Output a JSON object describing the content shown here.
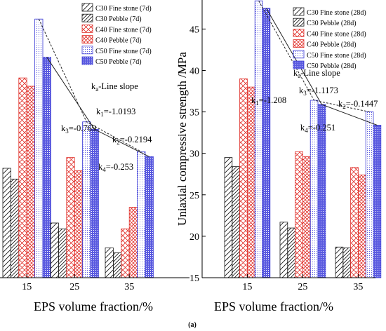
{
  "caption": "(a)",
  "chart_data": [
    {
      "type": "bar",
      "categories": [
        "15",
        "25",
        "35"
      ],
      "xlabel": "EPS volume fraction/%",
      "ylabel": "",
      "ylim": [
        15,
        48.5
      ],
      "series": [
        {
          "name": "C30 Fine stone (7d)",
          "values": [
            28.2,
            21.6,
            18.6
          ]
        },
        {
          "name": "C30 Pebble (7d)",
          "values": [
            26.9,
            20.9,
            18.0
          ]
        },
        {
          "name": "C40 Fine stone (7d)",
          "values": [
            39.1,
            29.5,
            20.9
          ]
        },
        {
          "name": "C40 Pebble (7d)",
          "values": [
            38.1,
            27.9,
            23.5
          ]
        },
        {
          "name": "C50 Fine stone (7d)",
          "values": [
            46.2,
            33.8,
            30.2
          ]
        },
        {
          "name": "C50 Pebble (7d)",
          "values": [
            41.6,
            32.9,
            29.6
          ]
        }
      ],
      "annotations": [
        {
          "text": "k1=-1.0193",
          "sub": "1",
          "prefix": "k",
          "value": "=-1.0193"
        },
        {
          "text": "k3=-0.769",
          "sub": "3",
          "prefix": "k",
          "value": "=-0.769"
        },
        {
          "text": "k2=-0.2194",
          "sub": "2",
          "prefix": "k",
          "value": "=-0.2194"
        },
        {
          "text": "k4=-0.253",
          "sub": "4",
          "prefix": "k",
          "value": "=-0.253"
        },
        {
          "text": "ka-Line slope",
          "sub": "a",
          "prefix": "k",
          "value": "-Line slope"
        }
      ]
    },
    {
      "type": "bar",
      "categories": [
        "15",
        "25",
        "35"
      ],
      "xlabel": "EPS volume fraction/%",
      "ylabel": "Uniaxial compressive strength /MPa",
      "ylim": [
        15,
        48.5
      ],
      "yticks": [
        15,
        20,
        25,
        30,
        35,
        40,
        45
      ],
      "series": [
        {
          "name": "C30 Fine stone (28d)",
          "values": [
            29.5,
            21.7,
            18.7
          ]
        },
        {
          "name": "C30 Pebble (28d)",
          "values": [
            28.4,
            21.0,
            18.6
          ]
        },
        {
          "name": "C40 Fine stone (28d)",
          "values": [
            39.0,
            30.2,
            28.3
          ]
        },
        {
          "name": "C40 Pebble (28d)",
          "values": [
            38.0,
            29.6,
            27.4
          ]
        },
        {
          "name": "C50 Fine stone (28d)",
          "values": [
            48.4,
            36.4,
            35.0
          ]
        },
        {
          "name": "C50 Pebble (28d)",
          "values": [
            47.5,
            35.9,
            33.4
          ]
        }
      ],
      "annotations": [
        {
          "text": "k1=-1.208",
          "sub": "1",
          "prefix": "k",
          "value": "=-1.208"
        },
        {
          "text": "k3=-1.1173",
          "sub": "3",
          "prefix": "k",
          "value": "=-1.1173"
        },
        {
          "text": "k2=-0.1447",
          "sub": "2",
          "prefix": "k",
          "value": "=-0.1447"
        },
        {
          "text": "k4=-0.251",
          "sub": "4",
          "prefix": "k",
          "value": "=-0.251"
        },
        {
          "text": "ka-Line slope",
          "sub": "a",
          "prefix": "k",
          "value": "-Line slope"
        }
      ]
    }
  ],
  "colors": {
    "c30": "#1a1a1a",
    "c40": "#e0302a",
    "c50": "#3a3ad6"
  }
}
